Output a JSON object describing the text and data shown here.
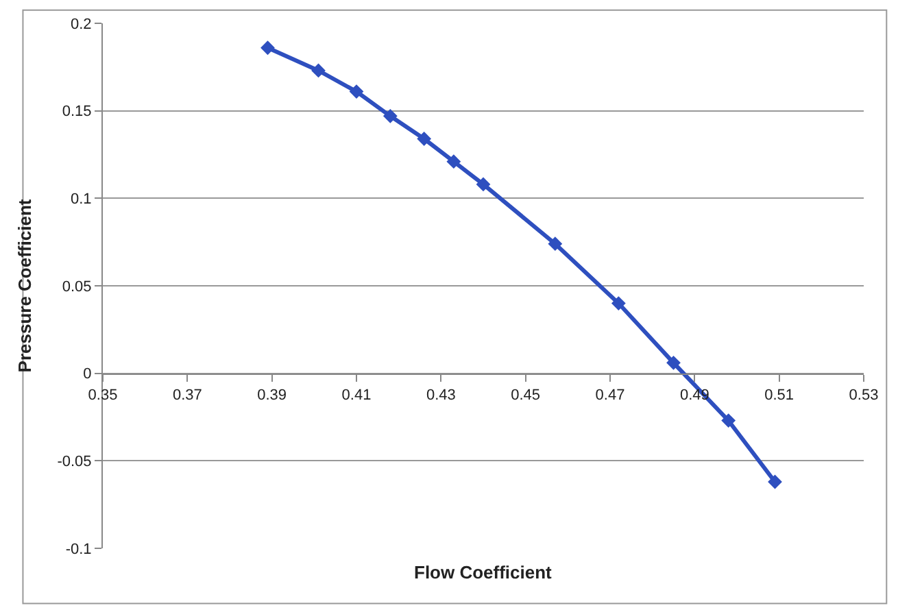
{
  "chart_data": {
    "type": "line",
    "xlabel": "Flow Coefficient",
    "ylabel": "Pressure Coefficient",
    "x": [
      0.389,
      0.401,
      0.41,
      0.418,
      0.426,
      0.433,
      0.44,
      0.457,
      0.472,
      0.485,
      0.498,
      0.509
    ],
    "series": [
      {
        "color": "#2e4fbf",
        "values": [
          0.186,
          0.173,
          0.161,
          0.147,
          0.134,
          0.121,
          0.108,
          0.074,
          0.04,
          0.006,
          -0.027,
          -0.062
        ]
      }
    ],
    "xlim": [
      0.35,
      0.53
    ],
    "xticks": [
      0.35,
      0.37,
      0.39,
      0.41,
      0.43,
      0.45,
      0.47,
      0.49,
      0.51,
      0.53
    ],
    "ylim": [
      -0.1,
      0.2
    ],
    "yticks": [
      -0.1,
      -0.05,
      0,
      0.05,
      0.1,
      0.15,
      0.2
    ],
    "grid": "y",
    "marker": "diamond",
    "line_style": "solid"
  }
}
